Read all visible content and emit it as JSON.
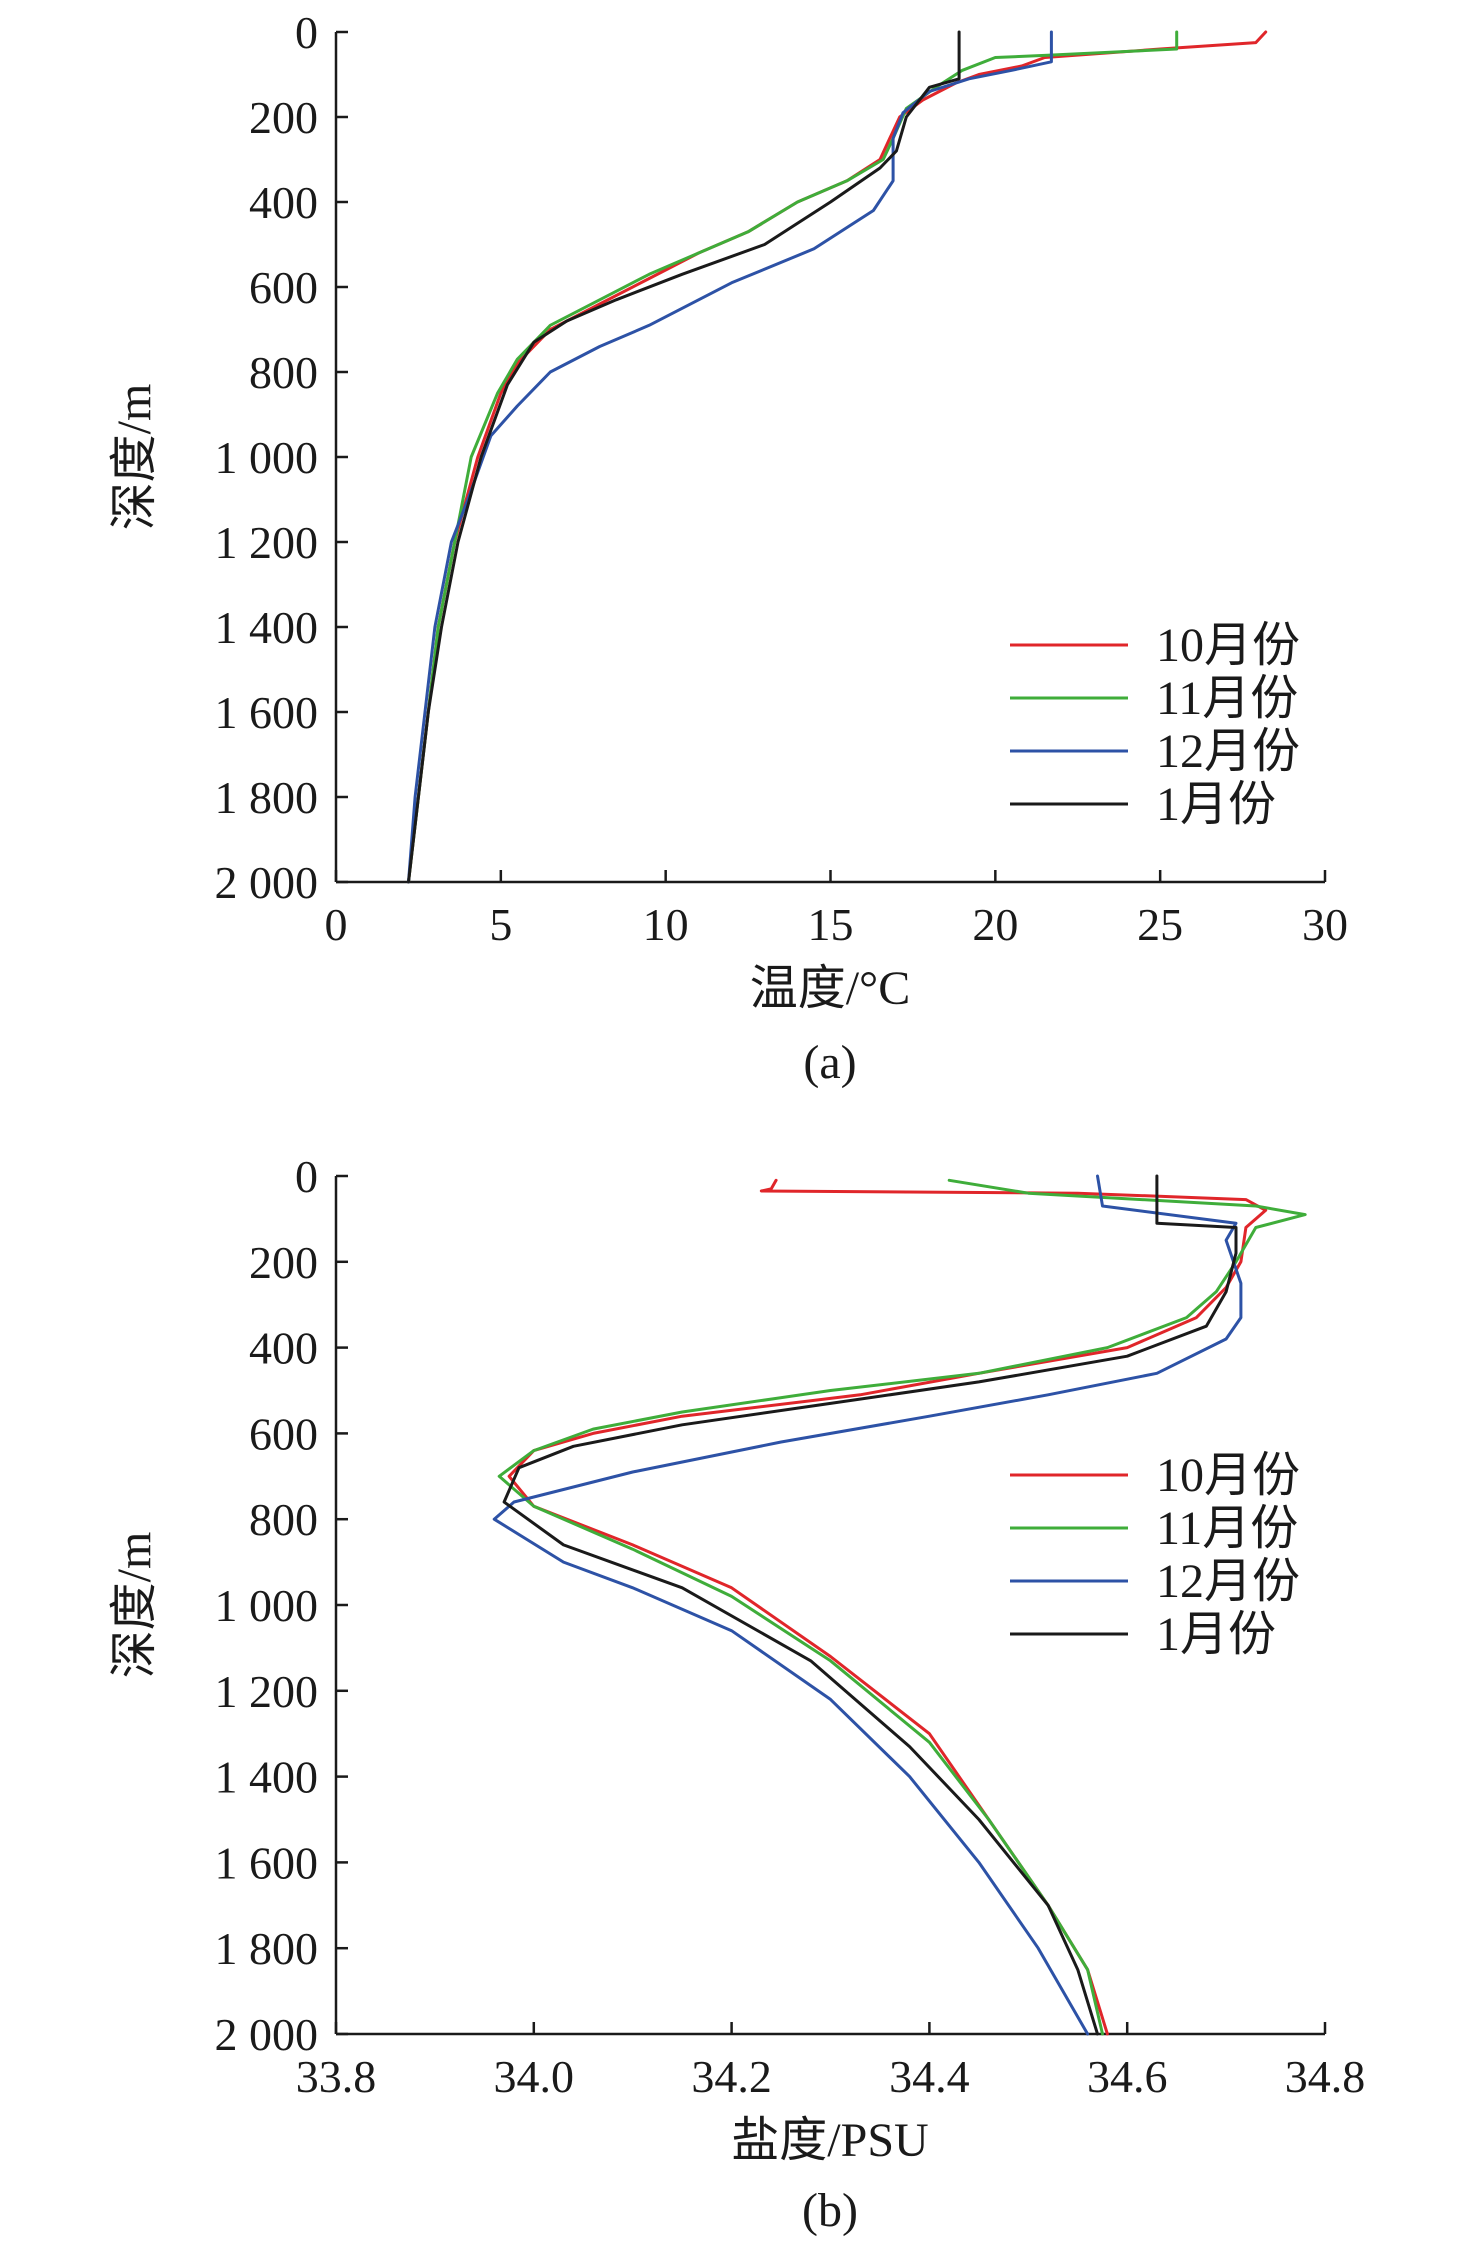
{
  "chart_data": [
    {
      "type": "line",
      "panel_label": "(a)",
      "xlabel": "温度/°C",
      "ylabel": "深度/m",
      "xlim": [
        0,
        30
      ],
      "ylim": [
        0,
        2000
      ],
      "y_inverted": true,
      "x_ticks": [
        "0",
        "5",
        "10",
        "15",
        "20",
        "25",
        "30"
      ],
      "y_ticks": [
        "0",
        "200",
        "400",
        "600",
        "800",
        "1 000",
        "1 200",
        "1 400",
        "1 600",
        "1 800",
        "2 000"
      ],
      "legend_position": "lower-right",
      "series": [
        {
          "name": "10月份",
          "color": "#e0262a",
          "points": [
            [
              28.2,
              0
            ],
            [
              27.9,
              25
            ],
            [
              25,
              40
            ],
            [
              21.5,
              60
            ],
            [
              20.8,
              80
            ],
            [
              19.5,
              100
            ],
            [
              18.8,
              120
            ],
            [
              17.8,
              160
            ],
            [
              17.1,
              200
            ],
            [
              16.8,
              250
            ],
            [
              16.5,
              300
            ],
            [
              15.5,
              350
            ],
            [
              14,
              400
            ],
            [
              12.5,
              470
            ],
            [
              11,
              520
            ],
            [
              9.5,
              580
            ],
            [
              8,
              640
            ],
            [
              6.5,
              700
            ],
            [
              5.5,
              780
            ],
            [
              5,
              850
            ],
            [
              4.3,
              1000
            ],
            [
              3.6,
              1200
            ],
            [
              3.1,
              1400
            ],
            [
              2.8,
              1600
            ],
            [
              2.5,
              1800
            ],
            [
              2.2,
              2000
            ]
          ]
        },
        {
          "name": "11月份",
          "color": "#3fad3a",
          "points": [
            [
              25.5,
              0
            ],
            [
              25.5,
              40
            ],
            [
              21.5,
              55
            ],
            [
              20,
              60
            ],
            [
              19,
              90
            ],
            [
              18.2,
              130
            ],
            [
              17.3,
              180
            ],
            [
              16.9,
              250
            ],
            [
              16.6,
              300
            ],
            [
              15.5,
              350
            ],
            [
              14,
              400
            ],
            [
              12.5,
              470
            ],
            [
              11,
              520
            ],
            [
              9.5,
              570
            ],
            [
              8,
              630
            ],
            [
              6.5,
              690
            ],
            [
              5.5,
              770
            ],
            [
              4.9,
              850
            ],
            [
              4.1,
              1000
            ],
            [
              3.6,
              1200
            ],
            [
              3.1,
              1400
            ],
            [
              2.8,
              1600
            ],
            [
              2.5,
              1800
            ],
            [
              2.2,
              2000
            ]
          ]
        },
        {
          "name": "12月份",
          "color": "#2d52a6",
          "points": [
            [
              21.7,
              0
            ],
            [
              21.7,
              70
            ],
            [
              20.5,
              90
            ],
            [
              19.2,
              110
            ],
            [
              18,
              140
            ],
            [
              17.2,
              190
            ],
            [
              16.9,
              250
            ],
            [
              16.9,
              350
            ],
            [
              16.3,
              420
            ],
            [
              14.5,
              510
            ],
            [
              12,
              590
            ],
            [
              9.5,
              690
            ],
            [
              8,
              740
            ],
            [
              6.5,
              800
            ],
            [
              5.5,
              880
            ],
            [
              4.7,
              950
            ],
            [
              4,
              1100
            ],
            [
              3.5,
              1200
            ],
            [
              3,
              1400
            ],
            [
              2.7,
              1600
            ],
            [
              2.4,
              1800
            ],
            [
              2.2,
              2000
            ]
          ]
        },
        {
          "name": "1月份",
          "color": "#1a1a1a",
          "points": [
            [
              18.9,
              0
            ],
            [
              18.9,
              110
            ],
            [
              18,
              130
            ],
            [
              17.3,
              200
            ],
            [
              17,
              280
            ],
            [
              16.5,
              320
            ],
            [
              15,
              400
            ],
            [
              13,
              500
            ],
            [
              10.5,
              570
            ],
            [
              8.5,
              630
            ],
            [
              7,
              680
            ],
            [
              6,
              730
            ],
            [
              5.2,
              830
            ],
            [
              4.4,
              1000
            ],
            [
              3.7,
              1200
            ],
            [
              3.2,
              1400
            ],
            [
              2.8,
              1600
            ],
            [
              2.5,
              1800
            ],
            [
              2.2,
              2000
            ]
          ]
        }
      ]
    },
    {
      "type": "line",
      "panel_label": "(b)",
      "xlabel": "盐度/PSU",
      "ylabel": "深度/m",
      "xlim": [
        33.8,
        34.8
      ],
      "ylim": [
        0,
        2000
      ],
      "y_inverted": true,
      "x_ticks": [
        "33.8",
        "34.0",
        "34.2",
        "34.4",
        "34.6",
        "34.8"
      ],
      "y_ticks": [
        "0",
        "200",
        "400",
        "600",
        "800",
        "1 000",
        "1 200",
        "1 400",
        "1 600",
        "1 800",
        "2 000"
      ],
      "legend_position": "right",
      "series": [
        {
          "name": "10月份",
          "color": "#e0262a",
          "points": [
            [
              34.245,
              10
            ],
            [
              34.24,
              30
            ],
            [
              34.23,
              35
            ],
            [
              34.55,
              40
            ],
            [
              34.72,
              55
            ],
            [
              34.74,
              80
            ],
            [
              34.72,
              120
            ],
            [
              34.715,
              200
            ],
            [
              34.7,
              260
            ],
            [
              34.67,
              330
            ],
            [
              34.6,
              400
            ],
            [
              34.45,
              460
            ],
            [
              34.33,
              510
            ],
            [
              34.15,
              560
            ],
            [
              34.06,
              600
            ],
            [
              34.0,
              640
            ],
            [
              33.975,
              700
            ],
            [
              34.0,
              770
            ],
            [
              34.1,
              860
            ],
            [
              34.2,
              960
            ],
            [
              34.3,
              1120
            ],
            [
              34.4,
              1300
            ],
            [
              34.46,
              1500
            ],
            [
              34.52,
              1700
            ],
            [
              34.56,
              1850
            ],
            [
              34.58,
              2000
            ]
          ]
        },
        {
          "name": "11月份",
          "color": "#3fad3a",
          "points": [
            [
              34.42,
              10
            ],
            [
              34.5,
              40
            ],
            [
              34.73,
              70
            ],
            [
              34.78,
              90
            ],
            [
              34.73,
              120
            ],
            [
              34.71,
              200
            ],
            [
              34.69,
              270
            ],
            [
              34.66,
              330
            ],
            [
              34.58,
              400
            ],
            [
              34.45,
              460
            ],
            [
              34.3,
              500
            ],
            [
              34.15,
              550
            ],
            [
              34.06,
              590
            ],
            [
              34.0,
              640
            ],
            [
              33.965,
              700
            ],
            [
              34.0,
              770
            ],
            [
              34.1,
              870
            ],
            [
              34.2,
              980
            ],
            [
              34.3,
              1130
            ],
            [
              34.4,
              1320
            ],
            [
              34.46,
              1500
            ],
            [
              34.52,
              1700
            ],
            [
              34.56,
              1850
            ],
            [
              34.575,
              2000
            ]
          ]
        },
        {
          "name": "12月份",
          "color": "#2d52a6",
          "points": [
            [
              34.57,
              0
            ],
            [
              34.575,
              70
            ],
            [
              34.71,
              110
            ],
            [
              34.7,
              150
            ],
            [
              34.715,
              250
            ],
            [
              34.715,
              330
            ],
            [
              34.7,
              380
            ],
            [
              34.63,
              460
            ],
            [
              34.52,
              510
            ],
            [
              34.4,
              560
            ],
            [
              34.25,
              620
            ],
            [
              34.1,
              690
            ],
            [
              33.98,
              760
            ],
            [
              33.96,
              800
            ],
            [
              34.03,
              900
            ],
            [
              34.1,
              960
            ],
            [
              34.2,
              1060
            ],
            [
              34.3,
              1220
            ],
            [
              34.38,
              1400
            ],
            [
              34.45,
              1600
            ],
            [
              34.51,
              1800
            ],
            [
              34.56,
              2000
            ]
          ]
        },
        {
          "name": "1月份",
          "color": "#1a1a1a",
          "points": [
            [
              34.63,
              0
            ],
            [
              34.63,
              110
            ],
            [
              34.71,
              120
            ],
            [
              34.71,
              180
            ],
            [
              34.7,
              270
            ],
            [
              34.68,
              350
            ],
            [
              34.6,
              420
            ],
            [
              34.45,
              480
            ],
            [
              34.3,
              530
            ],
            [
              34.15,
              580
            ],
            [
              34.04,
              630
            ],
            [
              33.985,
              680
            ],
            [
              33.97,
              760
            ],
            [
              34.03,
              860
            ],
            [
              34.15,
              960
            ],
            [
              34.28,
              1130
            ],
            [
              34.38,
              1330
            ],
            [
              34.45,
              1500
            ],
            [
              34.52,
              1700
            ],
            [
              34.55,
              1850
            ],
            [
              34.57,
              2000
            ]
          ]
        }
      ]
    }
  ]
}
